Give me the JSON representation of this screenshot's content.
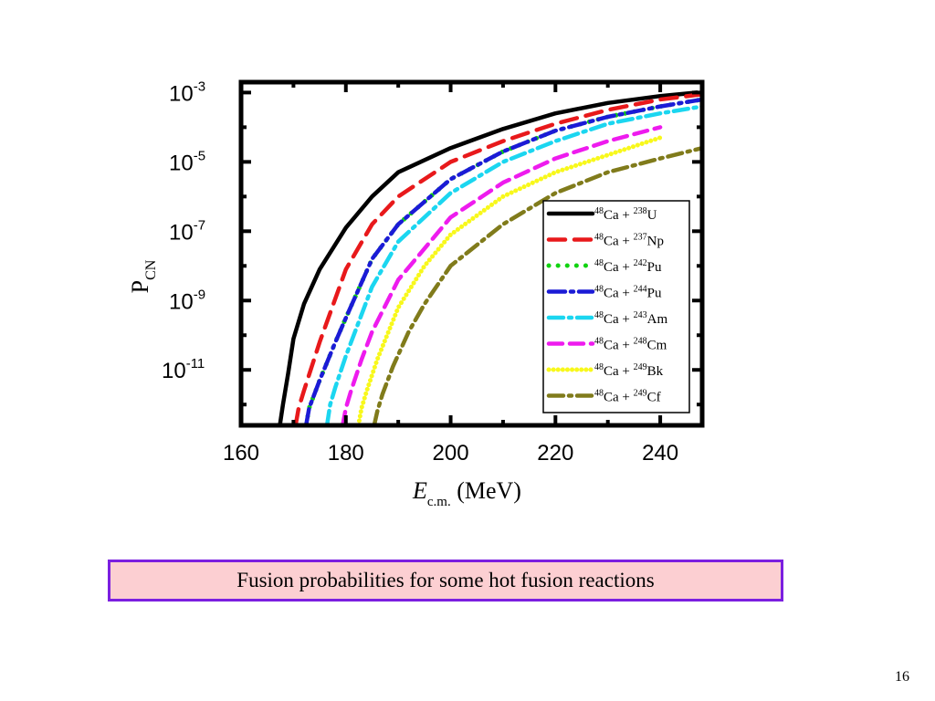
{
  "chart_data": {
    "type": "line",
    "xlabel": "E",
    "xlabel_sub": "c.m.",
    "xlabel_unit": "(MeV)",
    "ylabel": "P",
    "ylabel_sub": "CN",
    "xlim": [
      160,
      248
    ],
    "ylim_log10": [
      -12.6,
      -2.7
    ],
    "yscale": "log",
    "x_ticks": [
      160,
      180,
      200,
      220,
      240
    ],
    "y_ticks": [
      {
        "base": "10",
        "exp": "-3",
        "log": -3
      },
      {
        "base": "10",
        "exp": "-5",
        "log": -5
      },
      {
        "base": "10",
        "exp": "-7",
        "log": -7
      },
      {
        "base": "10",
        "exp": "-9",
        "log": -9
      },
      {
        "base": "10",
        "exp": "-11",
        "log": -11
      }
    ],
    "legend_position": "bottom-right",
    "series": [
      {
        "label_parts": [
          "48",
          "Ca + ",
          "238",
          "U"
        ],
        "color": "#000000",
        "dash": "",
        "width": 4.5,
        "x": [
          167.4,
          168,
          169,
          170,
          172,
          175,
          180,
          185,
          190,
          200,
          210,
          220,
          230,
          240,
          247
        ],
        "log_p": [
          -12.6,
          -12.0,
          -11.1,
          -10.1,
          -9.1,
          -8.1,
          -6.9,
          -6.0,
          -5.3,
          -4.6,
          -4.05,
          -3.6,
          -3.3,
          -3.1,
          -3.0
        ]
      },
      {
        "label_parts": [
          "48",
          "Ca + ",
          "237",
          "Np"
        ],
        "color": "#e8191b",
        "dash": "18 10",
        "width": 4.5,
        "x": [
          170.4,
          171,
          172,
          175,
          180,
          185,
          190,
          200,
          210,
          220,
          230,
          240,
          248
        ],
        "log_p": [
          -12.6,
          -12.1,
          -11.6,
          -10.2,
          -8.1,
          -6.8,
          -6.0,
          -5.0,
          -4.4,
          -3.9,
          -3.5,
          -3.2,
          -3.05
        ]
      },
      {
        "label_parts": [
          "48",
          "Ca + ",
          "242",
          "Pu"
        ],
        "color": "#11d311",
        "dash": "0.1 10",
        "width": 5,
        "x": [
          172.4,
          173,
          175,
          178,
          180,
          185,
          190,
          200,
          210,
          220,
          230,
          240,
          248
        ],
        "log_p": [
          -12.6,
          -12.1,
          -11.3,
          -10.2,
          -9.5,
          -7.8,
          -6.8,
          -5.5,
          -4.7,
          -4.1,
          -3.7,
          -3.4,
          -3.2
        ]
      },
      {
        "label_parts": [
          "48",
          "Ca + ",
          "244",
          "Pu"
        ],
        "color": "#1b1bd6",
        "dash": "18 6 3 6",
        "width": 4.5,
        "x": [
          172.4,
          173,
          175,
          178,
          180,
          185,
          190,
          200,
          210,
          220,
          230,
          240,
          248
        ],
        "log_p": [
          -12.6,
          -12.1,
          -11.3,
          -10.2,
          -9.5,
          -7.8,
          -6.8,
          -5.5,
          -4.7,
          -4.1,
          -3.7,
          -3.4,
          -3.2
        ]
      },
      {
        "label_parts": [
          "48",
          "Ca + ",
          "243",
          "Am"
        ],
        "color": "#1bd6f0",
        "dash": "16 6 3 6",
        "width": 4.5,
        "x": [
          176.4,
          177,
          178,
          180,
          185,
          190,
          200,
          210,
          220,
          230,
          240,
          248
        ],
        "log_p": [
          -12.6,
          -12.0,
          -11.5,
          -10.6,
          -8.6,
          -7.3,
          -5.9,
          -5.0,
          -4.4,
          -3.9,
          -3.6,
          -3.4
        ]
      },
      {
        "label_parts": [
          "48",
          "Ca + ",
          "248",
          "Cm"
        ],
        "color": "#ee1bee",
        "dash": "15 8",
        "width": 4.5,
        "x": [
          179.4,
          180,
          181,
          183,
          185,
          190,
          195,
          200,
          210,
          220,
          230,
          240
        ],
        "log_p": [
          -12.6,
          -12.1,
          -11.6,
          -10.7,
          -9.9,
          -8.4,
          -7.5,
          -6.6,
          -5.6,
          -4.9,
          -4.4,
          -4.0
        ]
      },
      {
        "label_parts": [
          "48",
          "Ca + ",
          "249",
          "Bk"
        ],
        "color": "#f8f81b",
        "dash": "0.1 5",
        "width": 5,
        "x": [
          182.4,
          183,
          184,
          186,
          190,
          195,
          200,
          210,
          220,
          230,
          240
        ],
        "log_p": [
          -12.6,
          -12.1,
          -11.6,
          -10.7,
          -9.2,
          -8.0,
          -7.1,
          -6.0,
          -5.3,
          -4.8,
          -4.3
        ]
      },
      {
        "label_parts": [
          "48",
          "Ca + ",
          "249",
          "Cf"
        ],
        "color": "#807b1b",
        "dash": "16 6 3 6",
        "width": 4.5,
        "x": [
          185.4,
          186,
          187,
          189,
          192,
          195,
          200,
          210,
          220,
          230,
          240,
          248
        ],
        "log_p": [
          -12.6,
          -12.2,
          -11.7,
          -10.9,
          -9.9,
          -9.1,
          -8.0,
          -6.8,
          -5.9,
          -5.3,
          -4.9,
          -4.6
        ]
      }
    ]
  },
  "caption": "Fusion probabilities for some hot fusion reactions",
  "page_number": "16"
}
